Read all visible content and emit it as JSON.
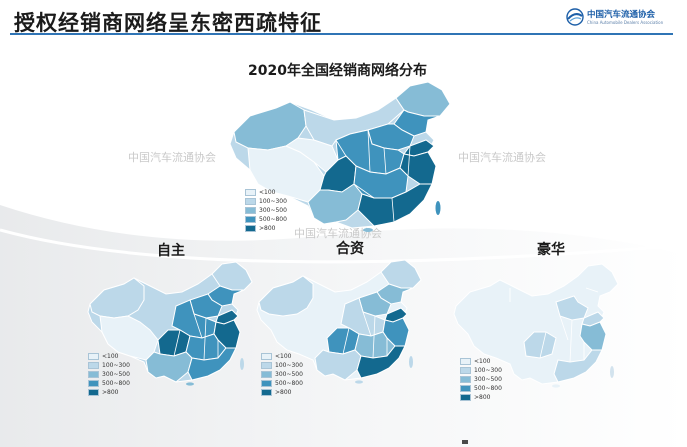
{
  "slide": {
    "title": "授权经销商网络呈东密西疏特征",
    "logo_text_cn": "中国汽车流通协会",
    "logo_text_en": "China Automobile Dealers Association"
  },
  "main_map": {
    "title": "2020年全国经销商网络分布"
  },
  "maps": [
    {
      "title": "自主"
    },
    {
      "title": "合资"
    },
    {
      "title": "豪华"
    }
  ],
  "legend": {
    "items": [
      {
        "label": "<100",
        "color": "#e8f2f8"
      },
      {
        "label": "100~300",
        "color": "#bcd8e9"
      },
      {
        "label": "300~500",
        "color": "#86bcd6"
      },
      {
        "label": "500~800",
        "color": "#3f93bd"
      },
      {
        "label": ">800",
        "color": "#13698f"
      }
    ]
  },
  "watermark": "中国汽车流通协会",
  "colors": {
    "title_rule": "#2f74b5",
    "level_1": "#e8f2f8",
    "level_2": "#bcd8e9",
    "level_3": "#86bcd6",
    "level_4": "#3f93bd",
    "level_5": "#13698f",
    "province_border": "#ffffff"
  }
}
